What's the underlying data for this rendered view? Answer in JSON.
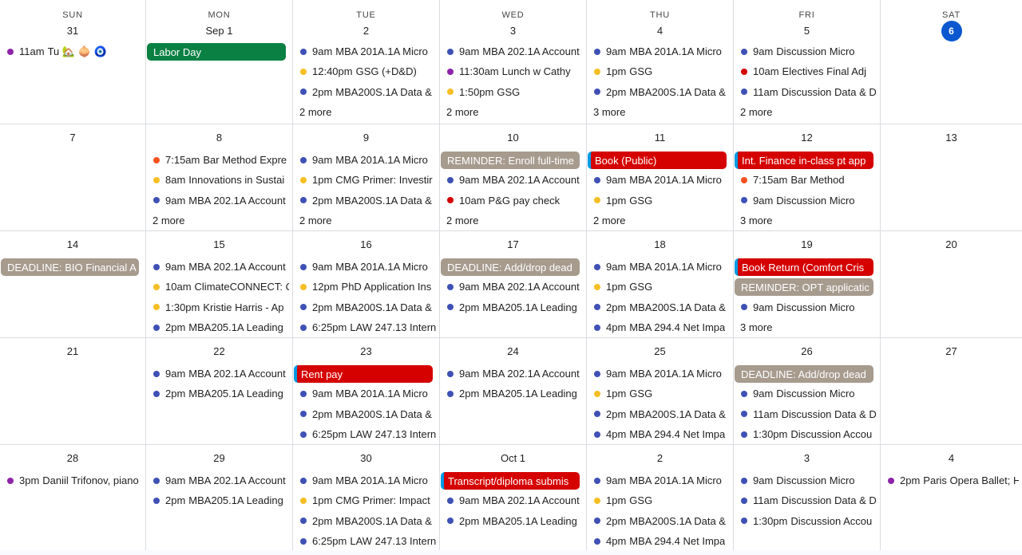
{
  "colors": {
    "blue": "#3f51b5",
    "yellow": "#f6bf26",
    "purple": "#8e24aa",
    "red": "#d50000",
    "orange": "#f4511e",
    "green": "#0b8043",
    "gray": "#a79b8e",
    "chip_red": "#d50000",
    "today": "#0b57d0"
  },
  "weekdays": [
    "SUN",
    "MON",
    "TUE",
    "WED",
    "THU",
    "FRI",
    "SAT"
  ],
  "weeks": [
    [
      {
        "date": "31",
        "items": [
          {
            "kind": "event",
            "color": "purple",
            "time": "11am",
            "title": "Tu 🏡 🧅 🧿"
          }
        ]
      },
      {
        "date": "Sep 1",
        "items": [
          {
            "kind": "chip",
            "color": "green",
            "title": "Labor Day"
          }
        ]
      },
      {
        "date": "2",
        "items": [
          {
            "kind": "event",
            "color": "blue",
            "time": "9am",
            "title": "MBA 201A.1A Micro"
          },
          {
            "kind": "event",
            "color": "yellow",
            "time": "12:40pm",
            "title": "GSG (+D&D)"
          },
          {
            "kind": "event",
            "color": "blue",
            "time": "2pm",
            "title": "MBA200S.1A Data &"
          },
          {
            "kind": "more",
            "title": "2 more"
          }
        ]
      },
      {
        "date": "3",
        "items": [
          {
            "kind": "event",
            "color": "blue",
            "time": "9am",
            "title": "MBA 202.1A Account"
          },
          {
            "kind": "event",
            "color": "purple",
            "time": "11:30am",
            "title": "Lunch w Cathy"
          },
          {
            "kind": "event",
            "color": "yellow",
            "time": "1:50pm",
            "title": "GSG"
          },
          {
            "kind": "more",
            "title": "2 more"
          }
        ]
      },
      {
        "date": "4",
        "items": [
          {
            "kind": "event",
            "color": "blue",
            "time": "9am",
            "title": "MBA 201A.1A Micro"
          },
          {
            "kind": "event",
            "color": "yellow",
            "time": "1pm",
            "title": "GSG"
          },
          {
            "kind": "event",
            "color": "blue",
            "time": "2pm",
            "title": "MBA200S.1A Data &"
          },
          {
            "kind": "more",
            "title": "3 more"
          }
        ]
      },
      {
        "date": "5",
        "items": [
          {
            "kind": "event",
            "color": "blue",
            "time": "9am",
            "title": "Discussion Micro"
          },
          {
            "kind": "event",
            "color": "red",
            "time": "10am",
            "title": "Electives Final Adj"
          },
          {
            "kind": "event",
            "color": "blue",
            "time": "11am",
            "title": "Discussion Data & D"
          },
          {
            "kind": "more",
            "title": "2 more"
          }
        ]
      },
      {
        "date": "6",
        "today": true,
        "items": []
      }
    ],
    [
      {
        "date": "7",
        "items": []
      },
      {
        "date": "8",
        "items": [
          {
            "kind": "event",
            "color": "orange",
            "time": "7:15am",
            "title": "Bar Method Expre"
          },
          {
            "kind": "event",
            "color": "yellow",
            "time": "8am",
            "title": "Innovations in Sustai"
          },
          {
            "kind": "event",
            "color": "blue",
            "time": "9am",
            "title": "MBA 202.1A Account"
          },
          {
            "kind": "more",
            "title": "2 more"
          }
        ]
      },
      {
        "date": "9",
        "items": [
          {
            "kind": "event",
            "color": "blue",
            "time": "9am",
            "title": "MBA 201A.1A Micro"
          },
          {
            "kind": "event",
            "color": "yellow",
            "time": "1pm",
            "title": "CMG Primer: Investir"
          },
          {
            "kind": "event",
            "color": "blue",
            "time": "2pm",
            "title": "MBA200S.1A Data &"
          },
          {
            "kind": "more",
            "title": "2 more"
          }
        ]
      },
      {
        "date": "10",
        "items": [
          {
            "kind": "chip",
            "color": "gray",
            "title": "REMINDER: Enroll full-time"
          },
          {
            "kind": "event",
            "color": "blue",
            "time": "9am",
            "title": "MBA 202.1A Account"
          },
          {
            "kind": "event",
            "color": "red",
            "time": "10am",
            "title": "P&G pay check"
          },
          {
            "kind": "more",
            "title": "2 more"
          }
        ]
      },
      {
        "date": "11",
        "items": [
          {
            "kind": "chip",
            "color": "chip_red",
            "stripe": true,
            "title": "Book (Public)"
          },
          {
            "kind": "event",
            "color": "blue",
            "time": "9am",
            "title": "MBA 201A.1A Micro"
          },
          {
            "kind": "event",
            "color": "yellow",
            "time": "1pm",
            "title": "GSG"
          },
          {
            "kind": "more",
            "title": "2 more"
          }
        ]
      },
      {
        "date": "12",
        "items": [
          {
            "kind": "chip",
            "color": "chip_red",
            "stripe": true,
            "title": "Int. Finance in-class pt app"
          },
          {
            "kind": "event",
            "color": "orange",
            "time": "7:15am",
            "title": "Bar Method"
          },
          {
            "kind": "event",
            "color": "blue",
            "time": "9am",
            "title": "Discussion Micro"
          },
          {
            "kind": "more",
            "title": "3 more"
          }
        ]
      },
      {
        "date": "13",
        "items": []
      }
    ],
    [
      {
        "date": "14",
        "items": [
          {
            "kind": "chip",
            "color": "gray",
            "title": "DEADLINE: BIO Financial A"
          }
        ]
      },
      {
        "date": "15",
        "items": [
          {
            "kind": "event",
            "color": "blue",
            "time": "9am",
            "title": "MBA 202.1A Account"
          },
          {
            "kind": "event",
            "color": "yellow",
            "time": "10am",
            "title": "ClimateCONNECT: C"
          },
          {
            "kind": "event",
            "color": "yellow",
            "time": "1:30pm",
            "title": "Kristie Harris - Ap"
          },
          {
            "kind": "event",
            "color": "blue",
            "time": "2pm",
            "title": "MBA205.1A Leading"
          }
        ]
      },
      {
        "date": "16",
        "items": [
          {
            "kind": "event",
            "color": "blue",
            "time": "9am",
            "title": "MBA 201A.1A Micro"
          },
          {
            "kind": "event",
            "color": "yellow",
            "time": "12pm",
            "title": "PhD Application Ins"
          },
          {
            "kind": "event",
            "color": "blue",
            "time": "2pm",
            "title": "MBA200S.1A Data &"
          },
          {
            "kind": "event",
            "color": "blue",
            "time": "6:25pm",
            "title": "LAW 247.13 Intern"
          }
        ]
      },
      {
        "date": "17",
        "items": [
          {
            "kind": "chip",
            "color": "gray",
            "title": "DEADLINE: Add/drop dead"
          },
          {
            "kind": "event",
            "color": "blue",
            "time": "9am",
            "title": "MBA 202.1A Account"
          },
          {
            "kind": "event",
            "color": "blue",
            "time": "2pm",
            "title": "MBA205.1A Leading"
          }
        ]
      },
      {
        "date": "18",
        "items": [
          {
            "kind": "event",
            "color": "blue",
            "time": "9am",
            "title": "MBA 201A.1A Micro"
          },
          {
            "kind": "event",
            "color": "yellow",
            "time": "1pm",
            "title": "GSG"
          },
          {
            "kind": "event",
            "color": "blue",
            "time": "2pm",
            "title": "MBA200S.1A Data &"
          },
          {
            "kind": "event",
            "color": "blue",
            "time": "4pm",
            "title": "MBA 294.4 Net Impa"
          }
        ]
      },
      {
        "date": "19",
        "items": [
          {
            "kind": "chip",
            "color": "chip_red",
            "stripe": true,
            "title": "Book Return (Comfort Cris"
          },
          {
            "kind": "chip",
            "color": "gray",
            "title": "REMINDER: OPT applicatic"
          },
          {
            "kind": "event",
            "color": "blue",
            "time": "9am",
            "title": "Discussion Micro"
          },
          {
            "kind": "more",
            "title": "3 more"
          }
        ]
      },
      {
        "date": "20",
        "items": []
      }
    ],
    [
      {
        "date": "21",
        "items": []
      },
      {
        "date": "22",
        "items": [
          {
            "kind": "event",
            "color": "blue",
            "time": "9am",
            "title": "MBA 202.1A Account"
          },
          {
            "kind": "event",
            "color": "blue",
            "time": "2pm",
            "title": "MBA205.1A Leading"
          }
        ]
      },
      {
        "date": "23",
        "items": [
          {
            "kind": "chip",
            "color": "chip_red",
            "stripe": true,
            "title": "Rent pay"
          },
          {
            "kind": "event",
            "color": "blue",
            "time": "9am",
            "title": "MBA 201A.1A Micro"
          },
          {
            "kind": "event",
            "color": "blue",
            "time": "2pm",
            "title": "MBA200S.1A Data &"
          },
          {
            "kind": "event",
            "color": "blue",
            "time": "6:25pm",
            "title": "LAW 247.13 Intern"
          }
        ]
      },
      {
        "date": "24",
        "items": [
          {
            "kind": "event",
            "color": "blue",
            "time": "9am",
            "title": "MBA 202.1A Account"
          },
          {
            "kind": "event",
            "color": "blue",
            "time": "2pm",
            "title": "MBA205.1A Leading"
          }
        ]
      },
      {
        "date": "25",
        "items": [
          {
            "kind": "event",
            "color": "blue",
            "time": "9am",
            "title": "MBA 201A.1A Micro"
          },
          {
            "kind": "event",
            "color": "yellow",
            "time": "1pm",
            "title": "GSG"
          },
          {
            "kind": "event",
            "color": "blue",
            "time": "2pm",
            "title": "MBA200S.1A Data &"
          },
          {
            "kind": "event",
            "color": "blue",
            "time": "4pm",
            "title": "MBA 294.4 Net Impa"
          }
        ]
      },
      {
        "date": "26",
        "items": [
          {
            "kind": "chip",
            "color": "gray",
            "title": "DEADLINE: Add/drop dead"
          },
          {
            "kind": "event",
            "color": "blue",
            "time": "9am",
            "title": "Discussion Micro"
          },
          {
            "kind": "event",
            "color": "blue",
            "time": "11am",
            "title": "Discussion Data & D"
          },
          {
            "kind": "event",
            "color": "blue",
            "time": "1:30pm",
            "title": "Discussion Accou"
          }
        ]
      },
      {
        "date": "27",
        "items": []
      }
    ],
    [
      {
        "date": "28",
        "items": [
          {
            "kind": "event",
            "color": "purple",
            "time": "3pm",
            "title": "Daniil Trifonov, piano"
          }
        ]
      },
      {
        "date": "29",
        "items": [
          {
            "kind": "event",
            "color": "blue",
            "time": "9am",
            "title": "MBA 202.1A Account"
          },
          {
            "kind": "event",
            "color": "blue",
            "time": "2pm",
            "title": "MBA205.1A Leading"
          }
        ]
      },
      {
        "date": "30",
        "items": [
          {
            "kind": "event",
            "color": "blue",
            "time": "9am",
            "title": "MBA 201A.1A Micro"
          },
          {
            "kind": "event",
            "color": "yellow",
            "time": "1pm",
            "title": "CMG Primer: Impact"
          },
          {
            "kind": "event",
            "color": "blue",
            "time": "2pm",
            "title": "MBA200S.1A Data &"
          },
          {
            "kind": "event",
            "color": "blue",
            "time": "6:25pm",
            "title": "LAW 247.13 Intern"
          }
        ]
      },
      {
        "date": "Oct 1",
        "items": [
          {
            "kind": "chip",
            "color": "chip_red",
            "stripe": true,
            "title": "Transcript/diploma submis"
          },
          {
            "kind": "event",
            "color": "blue",
            "time": "9am",
            "title": "MBA 202.1A Account"
          },
          {
            "kind": "event",
            "color": "blue",
            "time": "2pm",
            "title": "MBA205.1A Leading"
          }
        ]
      },
      {
        "date": "2",
        "items": [
          {
            "kind": "event",
            "color": "blue",
            "time": "9am",
            "title": "MBA 201A.1A Micro"
          },
          {
            "kind": "event",
            "color": "yellow",
            "time": "1pm",
            "title": "GSG"
          },
          {
            "kind": "event",
            "color": "blue",
            "time": "2pm",
            "title": "MBA200S.1A Data &"
          },
          {
            "kind": "event",
            "color": "blue",
            "time": "4pm",
            "title": "MBA 294.4 Net Impa"
          }
        ]
      },
      {
        "date": "3",
        "items": [
          {
            "kind": "event",
            "color": "blue",
            "time": "9am",
            "title": "Discussion Micro"
          },
          {
            "kind": "event",
            "color": "blue",
            "time": "11am",
            "title": "Discussion Data & D"
          },
          {
            "kind": "event",
            "color": "blue",
            "time": "1:30pm",
            "title": "Discussion Accou"
          }
        ]
      },
      {
        "date": "4",
        "items": [
          {
            "kind": "event",
            "color": "purple",
            "time": "2pm",
            "title": "Paris Opera Ballet; H"
          }
        ]
      }
    ]
  ]
}
